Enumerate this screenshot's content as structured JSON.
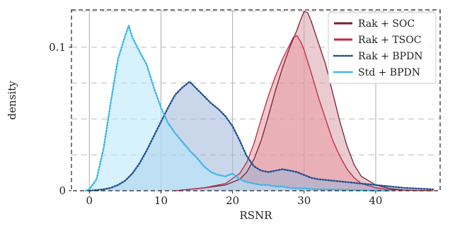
{
  "chart_data": {
    "type": "area",
    "xlabel": "RSNR",
    "ylabel": "density",
    "xlim": [
      -2.5,
      49
    ],
    "ylim": [
      0,
      0.126
    ],
    "x_ticks": [
      0,
      10,
      20,
      30,
      40
    ],
    "y_ticks": [
      0,
      0.1
    ],
    "y_tick_labels": [
      "0",
      "0.1"
    ],
    "grid": {
      "vertical": true,
      "horizontal_dashed": true
    },
    "legend_position": "top-right",
    "series": [
      {
        "name": "Rak + SOC",
        "line_style": "solid",
        "line_color": "#7a1f33",
        "fill_color": "#d9a0aa",
        "x": [
          12,
          16,
          19,
          21,
          22,
          23,
          24,
          25,
          26,
          27,
          28,
          29,
          29.5,
          30,
          30.5,
          31,
          32,
          33,
          34,
          35,
          36,
          37,
          38,
          40,
          42,
          44,
          46,
          48
        ],
        "y": [
          0,
          0.002,
          0.004,
          0.008,
          0.013,
          0.022,
          0.035,
          0.052,
          0.07,
          0.086,
          0.1,
          0.112,
          0.119,
          0.125,
          0.124,
          0.118,
          0.103,
          0.088,
          0.068,
          0.048,
          0.031,
          0.018,
          0.01,
          0.004,
          0.0015,
          0.0005,
          0.0002,
          0
        ]
      },
      {
        "name": "Rak + TSOC",
        "line_style": "solid",
        "line_color": "#c0273f",
        "fill_color": "#e89aa3",
        "x": [
          12,
          16,
          19,
          21,
          22,
          23,
          24,
          25,
          26,
          27,
          28,
          28.5,
          29,
          29.5,
          30,
          31,
          32,
          33,
          34,
          35,
          36,
          37,
          38,
          40,
          42,
          44,
          46,
          48
        ],
        "y": [
          0,
          0.002,
          0.005,
          0.012,
          0.02,
          0.033,
          0.05,
          0.066,
          0.08,
          0.092,
          0.102,
          0.107,
          0.108,
          0.104,
          0.098,
          0.082,
          0.065,
          0.05,
          0.035,
          0.024,
          0.015,
          0.009,
          0.005,
          0.002,
          0.0008,
          0.0003,
          0.0001,
          0
        ]
      },
      {
        "name": "Rak + BPDN",
        "line_style": "dotted",
        "line_color": "#1f4f8f",
        "fill_color": "#9fb6d8",
        "x": [
          0,
          1,
          2,
          3,
          4,
          5,
          6,
          7,
          8,
          9,
          10,
          11,
          12,
          13,
          14,
          15,
          16,
          17,
          18,
          19,
          20,
          21,
          22,
          23,
          24,
          25,
          26,
          27,
          28,
          29,
          30,
          31,
          32,
          34,
          36,
          38,
          40,
          42,
          44,
          46,
          48
        ],
        "y": [
          0,
          0.0005,
          0.001,
          0.002,
          0.004,
          0.007,
          0.012,
          0.019,
          0.028,
          0.038,
          0.048,
          0.058,
          0.067,
          0.072,
          0.076,
          0.071,
          0.066,
          0.061,
          0.057,
          0.052,
          0.045,
          0.035,
          0.024,
          0.017,
          0.014,
          0.013,
          0.014,
          0.015,
          0.014,
          0.013,
          0.011,
          0.009,
          0.008,
          0.007,
          0.006,
          0.005,
          0.004,
          0.003,
          0.002,
          0.0015,
          0.001
        ]
      },
      {
        "name": "Std + BPDN",
        "line_style": "dotted",
        "line_color": "#39b5e8",
        "fill_color": "#b7e6fb",
        "x": [
          -0.5,
          0,
          1,
          2,
          3,
          4,
          5,
          5.5,
          6,
          7,
          8,
          9,
          10,
          11,
          12,
          13,
          14,
          15,
          16,
          17,
          18,
          19,
          20,
          21,
          22,
          23,
          24,
          25,
          26,
          27,
          28,
          30,
          32,
          34,
          36,
          38,
          40,
          42
        ],
        "y": [
          0,
          0.001,
          0.008,
          0.03,
          0.062,
          0.092,
          0.108,
          0.115,
          0.107,
          0.097,
          0.088,
          0.072,
          0.058,
          0.047,
          0.04,
          0.034,
          0.028,
          0.023,
          0.017,
          0.013,
          0.011,
          0.01,
          0.012,
          0.008,
          0.006,
          0.005,
          0.004,
          0.004,
          0.003,
          0.003,
          0.002,
          0.0015,
          0.001,
          0.0008,
          0.0005,
          0.0003,
          0.0001,
          0
        ]
      }
    ]
  }
}
